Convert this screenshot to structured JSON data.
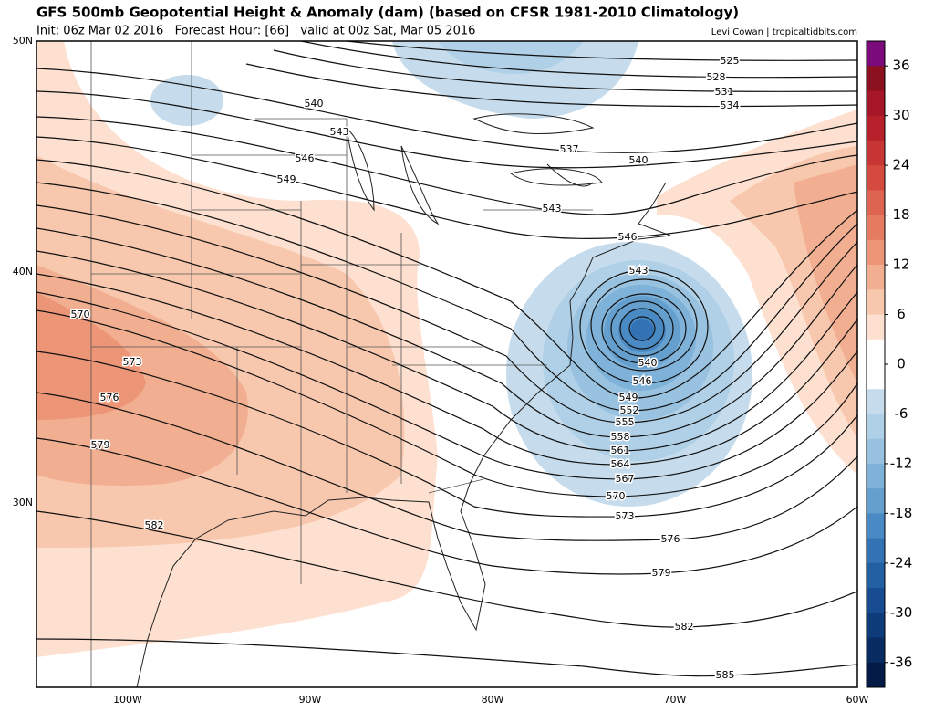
{
  "header": {
    "title": "GFS 500mb Geopotential Height & Anomaly (dam) (based on CFSR 1981-2010 Climatology)",
    "run": "Init: 06z Mar 02 2016   Forecast Hour: [66]   valid at 00z Sat, Mar 05 2016",
    "credit": "Levi Cowan | tropicaltidbits.com"
  },
  "map": {
    "lat_labels": [
      "50N",
      "40N",
      "30N"
    ],
    "lon_labels": [
      "100W",
      "90W",
      "80W",
      "70W",
      "60W"
    ],
    "contour_labels": [
      525,
      528,
      531,
      534,
      537,
      540,
      540,
      543,
      543,
      546,
      546,
      549,
      543,
      540,
      546,
      549,
      552,
      555,
      558,
      561,
      564,
      570,
      567,
      570,
      573,
      573,
      576,
      576,
      579,
      579,
      582,
      582,
      585
    ]
  },
  "colorbar": {
    "range": [
      -39,
      39
    ],
    "ticks": [
      36,
      30,
      24,
      18,
      12,
      6,
      0,
      -6,
      -12,
      -18,
      -24,
      -30,
      -36
    ],
    "colors": [
      "#7b0a7b",
      "#8b1020",
      "#a51628",
      "#b8202c",
      "#c83535",
      "#d44a3e",
      "#dc6450",
      "#e57c62",
      "#ec9677",
      "#f2ae90",
      "#f8c8ae",
      "#fde0cf",
      "#ffffff",
      "#ffffff",
      "#c6dcec",
      "#afd0e6",
      "#98c2e0",
      "#7fb2d8",
      "#649fce",
      "#4a8ac4",
      "#3373b5",
      "#235fa3",
      "#174d90",
      "#0e3c7a",
      "#082c62",
      "#041a47"
    ]
  }
}
